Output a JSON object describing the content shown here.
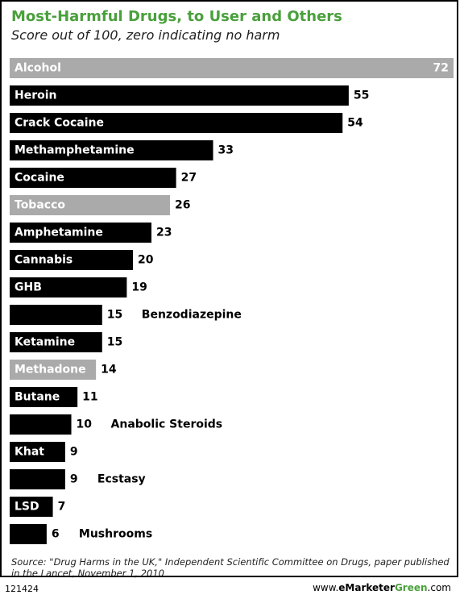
{
  "header": {
    "title": "Most-Harmful Drugs, to User and Others",
    "subtitle": "Score out of 100, zero indicating no harm"
  },
  "chart_data": {
    "type": "bar",
    "orientation": "horizontal",
    "categories": [
      "Alcohol",
      "Heroin",
      "Crack Cocaine",
      "Methamphetamine",
      "Cocaine",
      "Tobacco",
      "Amphetamine",
      "Cannabis",
      "GHB",
      "Benzodiazepine",
      "Ketamine",
      "Methadone",
      "Butane",
      "Anabolic Steroids",
      "Khat",
      "Ecstasy",
      "LSD",
      "Mushrooms"
    ],
    "values": [
      72,
      55,
      54,
      33,
      27,
      26,
      23,
      20,
      19,
      15,
      15,
      14,
      11,
      10,
      9,
      9,
      7,
      6
    ],
    "legal": [
      true,
      false,
      false,
      false,
      false,
      true,
      false,
      false,
      false,
      false,
      false,
      true,
      false,
      false,
      false,
      false,
      false,
      false
    ],
    "title": "Most-Harmful Drugs, to User and Others",
    "subtitle": "Score out of 100, zero indicating no harm",
    "xlabel": "",
    "ylabel": "",
    "xlim": [
      0,
      72
    ],
    "grid": false,
    "legend": "none",
    "colors": {
      "illicit": "#000000",
      "legal": "#aaaaaa",
      "title": "#4aa03c"
    }
  },
  "footer": {
    "source": "Source: \"Drug Harms in the UK,\" Independent Scientific Committee on Drugs, paper published in the Lancet, November 1, 2010",
    "chart_id": "121424",
    "brand_prefix": "www.",
    "brand_e": "eMarketer",
    "brand_green": "Green",
    "brand_suffix": ".com"
  }
}
